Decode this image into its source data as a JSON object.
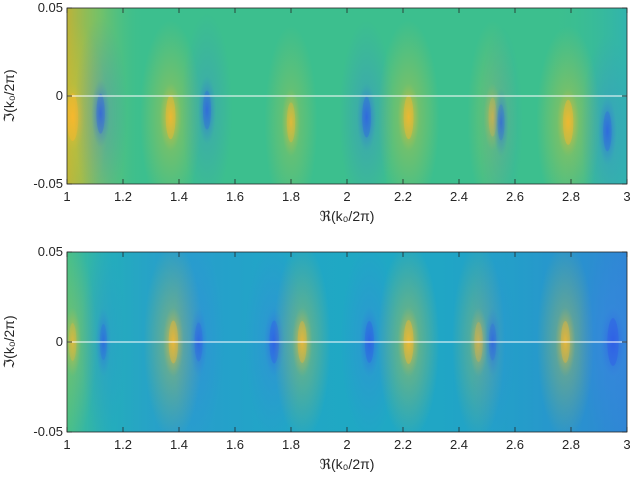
{
  "chart_data": [
    {
      "type": "heatmap",
      "title": "",
      "xlabel": "ℜ(k₀/2π)",
      "ylabel": "ℑ(k₀/2π)",
      "xlim": [
        1,
        3
      ],
      "ylim": [
        -0.05,
        0.05
      ],
      "xticks": [
        "1",
        "1.2",
        "1.4",
        "1.6",
        "1.8",
        "2",
        "2.2",
        "2.4",
        "2.6",
        "2.8",
        "3"
      ],
      "yticks": [
        "-0.05",
        "0",
        "0.05"
      ],
      "reference_line_y": 0,
      "base_color": "#3cbf8e",
      "features": [
        {
          "x": 1.02,
          "y": -0.012,
          "kind": "peak",
          "strength": 1.0
        },
        {
          "x": 1.12,
          "y": -0.01,
          "kind": "dip",
          "strength": 0.6
        },
        {
          "x": 1.37,
          "y": -0.012,
          "kind": "peak",
          "strength": 0.8
        },
        {
          "x": 1.5,
          "y": -0.008,
          "kind": "dip",
          "strength": 0.55
        },
        {
          "x": 1.8,
          "y": -0.015,
          "kind": "peak",
          "strength": 0.6
        },
        {
          "x": 2.07,
          "y": -0.012,
          "kind": "dip",
          "strength": 0.65
        },
        {
          "x": 2.22,
          "y": -0.012,
          "kind": "peak",
          "strength": 0.8
        },
        {
          "x": 2.52,
          "y": -0.012,
          "kind": "peak",
          "strength": 0.55
        },
        {
          "x": 2.55,
          "y": -0.015,
          "kind": "dip",
          "strength": 0.4
        },
        {
          "x": 2.79,
          "y": -0.015,
          "kind": "peak",
          "strength": 0.85
        },
        {
          "x": 2.93,
          "y": -0.02,
          "kind": "dip",
          "strength": 0.6
        }
      ]
    },
    {
      "type": "heatmap",
      "title": "",
      "xlabel": "ℜ(k₀/2π)",
      "ylabel": "ℑ(k₀/2π)",
      "xlim": [
        1,
        3
      ],
      "ylim": [
        -0.05,
        0.05
      ],
      "xticks": [
        "1",
        "1.2",
        "1.4",
        "1.6",
        "1.8",
        "2",
        "2.2",
        "2.4",
        "2.6",
        "2.8",
        "3"
      ],
      "yticks": [
        "-0.05",
        "0",
        "0.05"
      ],
      "reference_line_y": 0,
      "base_color": "#1fa8c4",
      "features": [
        {
          "x": 1.02,
          "y": 0.0,
          "kind": "peak",
          "strength": 0.5
        },
        {
          "x": 1.13,
          "y": 0.0,
          "kind": "dip",
          "strength": 0.4
        },
        {
          "x": 1.38,
          "y": 0.0,
          "kind": "peak",
          "strength": 0.75
        },
        {
          "x": 1.47,
          "y": 0.0,
          "kind": "dip",
          "strength": 0.55
        },
        {
          "x": 1.74,
          "y": 0.0,
          "kind": "dip",
          "strength": 0.75
        },
        {
          "x": 1.84,
          "y": 0.0,
          "kind": "peak",
          "strength": 0.7
        },
        {
          "x": 2.08,
          "y": 0.0,
          "kind": "dip",
          "strength": 0.7
        },
        {
          "x": 2.22,
          "y": 0.0,
          "kind": "peak",
          "strength": 0.8
        },
        {
          "x": 2.47,
          "y": 0.0,
          "kind": "peak",
          "strength": 0.6
        },
        {
          "x": 2.52,
          "y": 0.0,
          "kind": "dip",
          "strength": 0.45
        },
        {
          "x": 2.78,
          "y": 0.0,
          "kind": "peak",
          "strength": 0.7
        },
        {
          "x": 2.95,
          "y": 0.0,
          "kind": "dip",
          "strength": 1.0
        }
      ]
    }
  ]
}
